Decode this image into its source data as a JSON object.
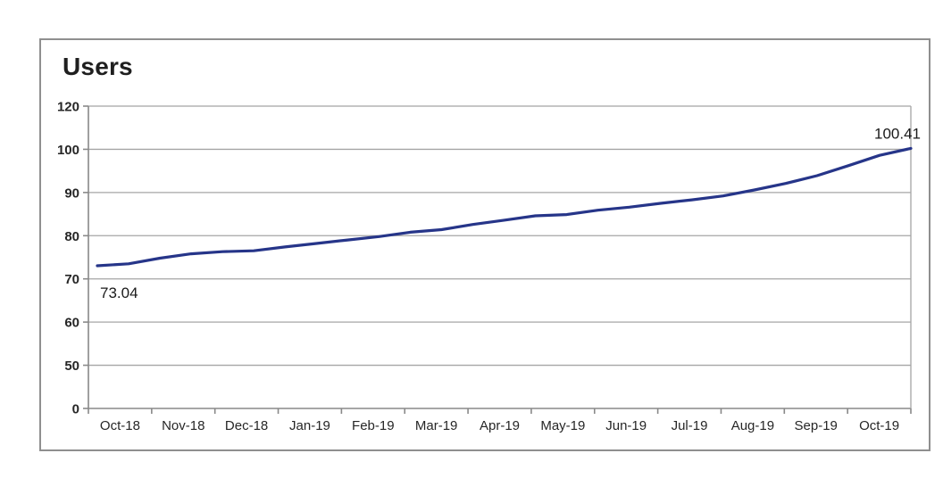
{
  "page": {
    "background_color": "#ffffff"
  },
  "card": {
    "border_color": "#8f8f8f",
    "background_color": "#ffffff"
  },
  "chart_data": {
    "type": "line",
    "title": "Users",
    "categories": [
      "Oct-18",
      "Nov-18",
      "Dec-18",
      "Jan-19",
      "Feb-19",
      "Mar-19",
      "Apr-19",
      "May-19",
      "Jun-19",
      "Jul-19",
      "Aug-19",
      "Sep-19",
      "Oct-19"
    ],
    "y_ticks_top_to_bottom": [
      120,
      100,
      90,
      80,
      70,
      60,
      50,
      0
    ],
    "axis_layout": "y ticks equally spaced on screen; horizontal gridlines only; no legend",
    "series": [
      {
        "name": "Users",
        "color": "#263589",
        "first_point_label": "73.04",
        "last_point_label": "100.41",
        "values_at_month_labels": [
          73.3,
          75.6,
          76.4,
          78.0,
          79.7,
          81.3,
          83.5,
          84.9,
          86.5,
          88.2,
          90.5,
          93.9,
          98.6
        ],
        "sampled_points": [
          73.04,
          73.5,
          74.8,
          75.8,
          76.3,
          76.5,
          77.4,
          78.2,
          79.0,
          79.8,
          80.8,
          81.4,
          82.6,
          83.6,
          84.6,
          84.9,
          85.9,
          86.6,
          87.5,
          88.3,
          89.2,
          90.6,
          92.1,
          93.9,
          96.2,
          98.6,
          100.41
        ]
      }
    ],
    "colors": {
      "gridline": "#a5a5a5",
      "axis": "#898989",
      "tick": "#898989",
      "label_text": "#262626",
      "title_text": "#1f1f1f"
    }
  }
}
